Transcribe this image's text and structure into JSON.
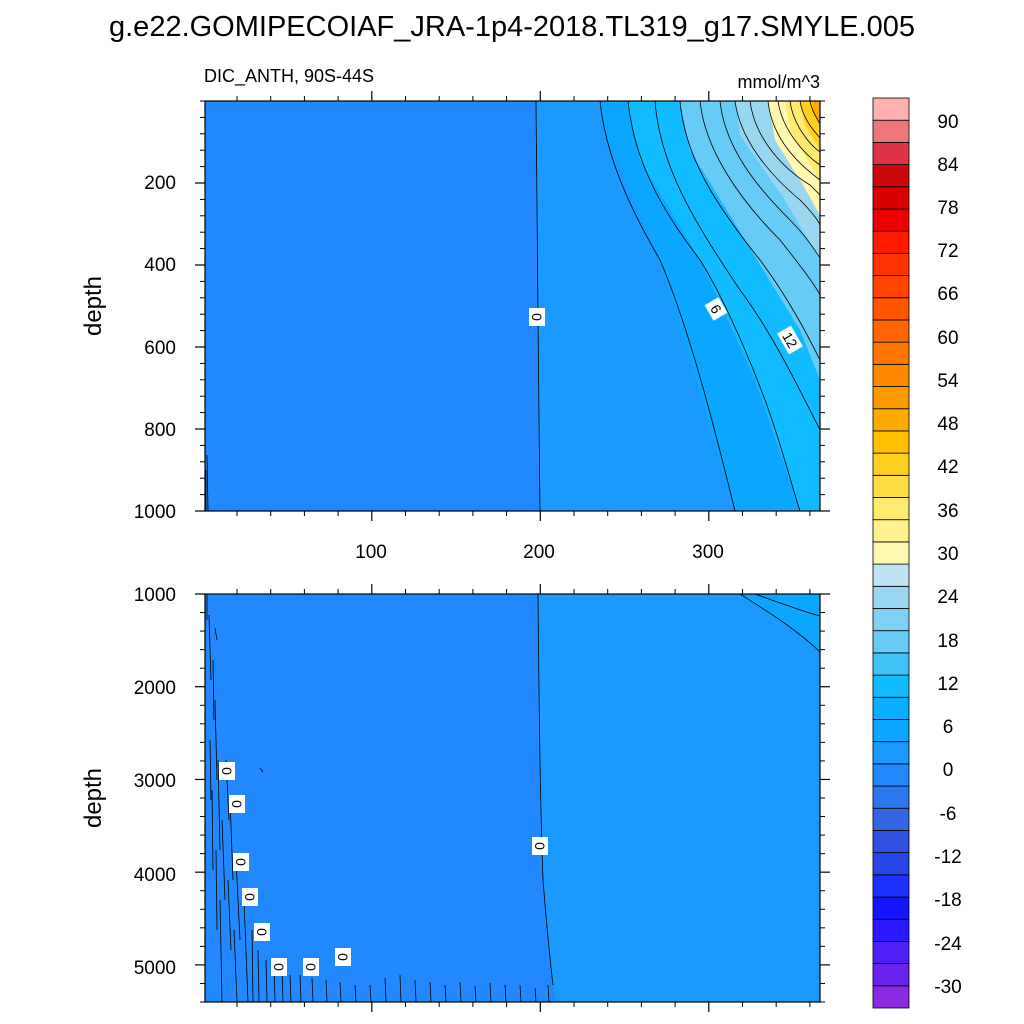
{
  "title": "g.e22.GOMIPECOIAF_JRA-1p4-2018.TL319_g17.SMYLE.005",
  "colors": {
    "background": "#2288ff",
    "zero_region": "#1a99ff",
    "six_region": "#0aa6ff",
    "twelve_region": "#11bbff",
    "eighteen_region": "#66ccf5",
    "twentyfour_region": "#99d7f0",
    "thirty_region": "#fff8b0",
    "thirtysix_region": "#ffea70",
    "fortytwo_region": "#ffd020",
    "fortyeight_region": "#ffaa00"
  },
  "chart_data": [
    {
      "type": "contour",
      "name": "upper-panel",
      "title": "DIC_ANTH, 90S-44S",
      "units": "mmol/m^3",
      "xlabel": "",
      "ylabel": "depth",
      "xlim": [
        1,
        366
      ],
      "ylim": [
        0,
        1000
      ],
      "y_inverted": true,
      "x_ticks": [
        100,
        200,
        300
      ],
      "y_ticks": [
        200,
        400,
        600,
        800,
        1000
      ],
      "x_tick_labels": [
        "100",
        "200",
        "300"
      ],
      "y_tick_labels": [
        "200",
        "400",
        "600",
        "800",
        "1000"
      ],
      "contour_labels": [
        {
          "text": "0",
          "x": 198,
          "y": 530
        },
        {
          "text": "6",
          "x": 305,
          "y": 505
        },
        {
          "text": "12",
          "x": 348,
          "y": 580
        }
      ]
    },
    {
      "type": "contour",
      "name": "lower-panel",
      "title": "",
      "units": "mmol/m^3",
      "xlabel": "",
      "ylabel": "depth",
      "xlim": [
        1,
        366
      ],
      "ylim": [
        1000,
        5400
      ],
      "y_inverted": true,
      "x_ticks": [
        100,
        200,
        300
      ],
      "y_ticks": [
        1000,
        2000,
        3000,
        4000,
        5000
      ],
      "y_tick_labels": [
        "1000",
        "2000",
        "3000",
        "4000",
        "5000"
      ],
      "contour_labels": [
        {
          "text": "0",
          "x": 13,
          "y": 2900
        },
        {
          "text": "0",
          "x": 19,
          "y": 3250
        },
        {
          "text": "0",
          "x": 22,
          "y": 3880
        },
        {
          "text": "0",
          "x": 27,
          "y": 4270
        },
        {
          "text": "0",
          "x": 34,
          "y": 4640
        },
        {
          "text": "0",
          "x": 44,
          "y": 5000
        },
        {
          "text": "0",
          "x": 63,
          "y": 5000
        },
        {
          "text": "0",
          "x": 83,
          "y": 4920
        },
        {
          "text": "0",
          "x": 200,
          "y": 3700
        }
      ]
    },
    {
      "type": "colorbar",
      "name": "colorbar",
      "levels": [
        -30,
        -27,
        -24,
        -21,
        -18,
        -15,
        -12,
        -9,
        -6,
        -3,
        0,
        3,
        6,
        9,
        12,
        15,
        18,
        21,
        24,
        27,
        30,
        33,
        36,
        39,
        42,
        45,
        48,
        51,
        54,
        57,
        60,
        63,
        66,
        69,
        72,
        75,
        78,
        81,
        84,
        87,
        90
      ],
      "tick_labels": [
        "90",
        "84",
        "78",
        "72",
        "66",
        "60",
        "54",
        "48",
        "42",
        "36",
        "30",
        "24",
        "18",
        "12",
        "6",
        "0",
        "-6",
        "-12",
        "-18",
        "-24",
        "-30"
      ],
      "colors": [
        "#8a2be2",
        "#6a22ee",
        "#4f1ef4",
        "#2a18ff",
        "#1414ff",
        "#1e32ff",
        "#2846e8",
        "#3050e0",
        "#3366e0",
        "#2a77ee",
        "#2288ff",
        "#1a99ff",
        "#0aa6ff",
        "#0ab0ff",
        "#11bbff",
        "#40c4f8",
        "#66ccf5",
        "#7fd0f2",
        "#99d7f0",
        "#bfe3f4",
        "#fff8b0",
        "#fff090",
        "#ffea70",
        "#ffde45",
        "#ffd020",
        "#ffbe00",
        "#ffaa00",
        "#ff9900",
        "#ff8800",
        "#ff7700",
        "#ff6600",
        "#ff5500",
        "#ff4400",
        "#ff3300",
        "#ff1a00",
        "#ee0000",
        "#dd0000",
        "#cc0a0a",
        "#dd3344",
        "#ee7777",
        "#ffb0b0"
      ]
    }
  ]
}
